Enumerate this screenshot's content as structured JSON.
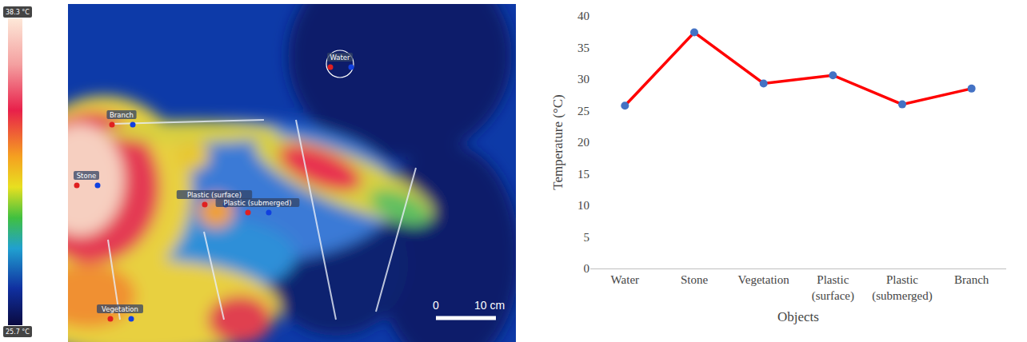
{
  "chart_data": {
    "type": "line",
    "x_label": "Objects",
    "y_label": "Temperature (°C)",
    "categories": [
      "Water",
      "Stone",
      "Vegetation",
      "Plastic (surface)",
      "Plastic (submerged)",
      "Branch"
    ],
    "values": [
      25.8,
      37.4,
      29.3,
      30.6,
      26.0,
      28.5
    ],
    "color": "#ff0000",
    "marker": "circle",
    "line_style": "solid",
    "ylim": [
      0,
      40
    ],
    "yticks": [
      0,
      5,
      10,
      15,
      20,
      25,
      30,
      35,
      40
    ],
    "grid": false
  },
  "thermal_image": {
    "colorbar": {
      "range": [
        25.7,
        38.3
      ],
      "ticks": [
        {
          "value": 38.3,
          "label": "38.3 °C"
        },
        {
          "value": 25.7,
          "label": "25.7 °C"
        }
      ]
    },
    "labels": [
      "Water",
      "Branch",
      "Stone",
      "Plastic (surface)",
      "Plastic (submerged)",
      "Vegetation"
    ],
    "scale_bar": {
      "labels": [
        "0",
        "10 cm"
      ]
    }
  }
}
